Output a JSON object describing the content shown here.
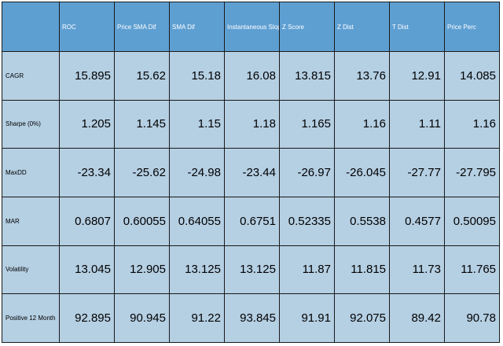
{
  "table": {
    "corner": "",
    "columns": [
      "ROC",
      "Price SMA Dif",
      "SMA Dif",
      "Instantaneous Slope",
      "Z Score",
      "Z Dist",
      "T Dist",
      "Price Perc"
    ],
    "rows": [
      {
        "label": "CAGR",
        "values": [
          "15.895",
          "15.62",
          "15.18",
          "16.08",
          "13.815",
          "13.76",
          "12.91",
          "14.085"
        ]
      },
      {
        "label": "Sharpe (0%)",
        "values": [
          "1.205",
          "1.145",
          "1.15",
          "1.18",
          "1.165",
          "1.16",
          "1.11",
          "1.16"
        ]
      },
      {
        "label": "MaxDD",
        "values": [
          "-23.34",
          "-25.62",
          "-24.98",
          "-23.44",
          "-26.97",
          "-26.045",
          "-27.77",
          "-27.795"
        ]
      },
      {
        "label": "MAR",
        "values": [
          "0.6807",
          "0.60055",
          "0.64055",
          "0.6751",
          "0.52335",
          "0.5538",
          "0.4577",
          "0.50095"
        ]
      },
      {
        "label": "Volatility",
        "values": [
          "13.045",
          "12.905",
          "13.125",
          "13.125",
          "11.87",
          "11.815",
          "11.73",
          "11.765"
        ]
      },
      {
        "label": "Positive 12 Month",
        "values": [
          "92.895",
          "90.945",
          "91.22",
          "93.845",
          "91.91",
          "92.075",
          "89.42",
          "90.78"
        ]
      }
    ]
  },
  "colors": {
    "header_bg": "#5e9fd2",
    "body_bg": "#b5cfe3",
    "header_text": "#ffffff",
    "body_text": "#000000",
    "border": "#1a1a1a"
  }
}
